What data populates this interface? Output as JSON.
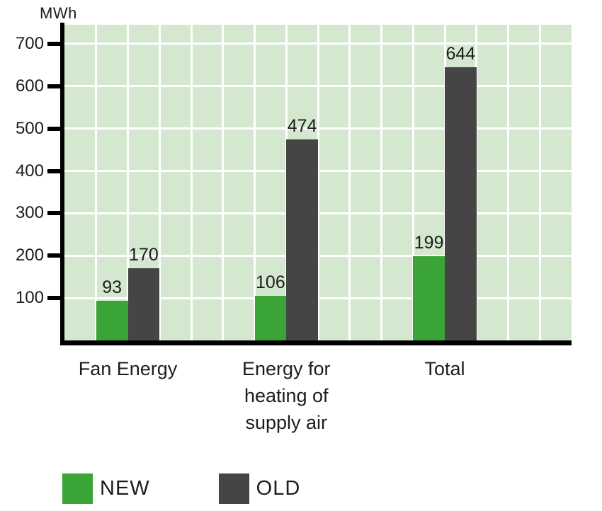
{
  "chart_data": {
    "type": "bar",
    "title": "",
    "xlabel": "",
    "ylabel": "MWh",
    "categories": [
      "Fan Energy",
      "Energy for heating of supply air",
      "Total"
    ],
    "series": [
      {
        "name": "NEW",
        "color": "#3ba437",
        "values": [
          93,
          106,
          199
        ]
      },
      {
        "name": "OLD",
        "color": "#454545",
        "values": [
          170,
          474,
          644
        ]
      }
    ],
    "y_ticks": [
      100,
      200,
      300,
      400,
      500,
      600,
      700
    ],
    "ylim": [
      0,
      745
    ],
    "grid": true,
    "plot_background": "#d3e8ce",
    "gridline_color": "#ffffff",
    "axis_color": "#000000",
    "text_color": "#1d1d1d",
    "legend_position": "bottom-left"
  }
}
